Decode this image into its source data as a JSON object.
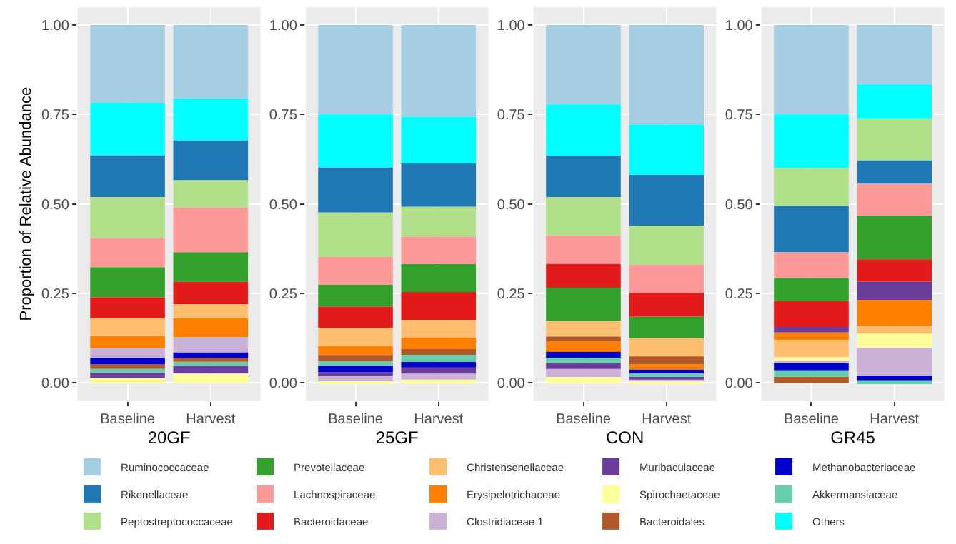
{
  "chart_data": [
    {
      "type": "bar",
      "xlabel": "20GF",
      "ylabel": "Proportion of Relative Abundance",
      "categories": [
        "Baseline",
        "Harvest"
      ],
      "ylim": [
        -0.05,
        1.05
      ],
      "yticks": [
        {
          "value": 0,
          "label": "0.00"
        },
        {
          "value": 0.25,
          "label": "0.25"
        },
        {
          "value": 0.5,
          "label": "0.50"
        },
        {
          "value": 0.75,
          "label": "0.75"
        },
        {
          "value": 1,
          "label": "1.00"
        }
      ],
      "grid": true,
      "legend": "bottom",
      "series": [
        {
          "name": "Ruminococcaceae",
          "color": "#a6cee3",
          "base": [
            0.783,
            0.795
          ],
          "values": [
            0.217,
            0.205
          ]
        },
        {
          "name": "Rikenellaceae",
          "color": "#1f78b4",
          "base": [
            0.519,
            0.566
          ],
          "values": [
            0.117,
            0.112
          ]
        },
        {
          "name": "Peptostreptococcaceae",
          "color": "#b2df8a",
          "base": [
            0.404,
            0.49
          ],
          "values": [
            0.115,
            0.076
          ]
        },
        {
          "name": "Prevotellaceae",
          "color": "#33a02c",
          "base": [
            0.239,
            0.283
          ],
          "values": [
            0.084,
            0.082
          ]
        },
        {
          "name": "Lachnospiraceae",
          "color": "#fb9a99",
          "base": [
            0.323,
            0.365
          ],
          "values": [
            0.081,
            0.125
          ]
        },
        {
          "name": "Bacteroidaceae",
          "color": "#e31a1c",
          "base": [
            0.18,
            0.22
          ],
          "values": [
            0.059,
            0.063
          ]
        },
        {
          "name": "Christensenellaceae",
          "color": "#fdbf6f",
          "base": [
            0.13,
            0.18
          ],
          "values": [
            0.05,
            0.04
          ]
        },
        {
          "name": "Erysipelotrichaceae",
          "color": "#ff7f00",
          "base": [
            0.096,
            0.128
          ],
          "values": [
            0.034,
            0.052
          ]
        },
        {
          "name": "Clostridiaceae 1",
          "color": "#cab2d6",
          "base": [
            0.07,
            0.085
          ],
          "values": [
            0.026,
            0.043
          ]
        },
        {
          "name": "Muribaculaceae",
          "color": "#6a3d9a",
          "base": [
            0.013,
            0.026
          ],
          "values": [
            0.016,
            0.022
          ]
        },
        {
          "name": "Spirochaetaceae",
          "color": "#ffff99",
          "base": [
            0,
            0
          ],
          "values": [
            0.013,
            0.026
          ]
        },
        {
          "name": "Bacteroidales",
          "color": "#b15928",
          "base": [
            0.039,
            0.059
          ],
          "values": [
            0.013,
            0.01
          ]
        },
        {
          "name": "Methanobacteriaceae",
          "color": "#0000cd",
          "base": [
            0.052,
            0.069
          ],
          "values": [
            0.018,
            0.016
          ]
        },
        {
          "name": "Akkermansiaceae",
          "color": "#66cdaa",
          "base": [
            0.029,
            0.048
          ],
          "values": [
            0.01,
            0.011
          ]
        },
        {
          "name": "Others",
          "color": "#00ffff",
          "base": [
            0.636,
            0.678
          ],
          "values": [
            0.147,
            0.117
          ]
        }
      ]
    },
    {
      "type": "bar",
      "xlabel": "25GF",
      "categories": [
        "Baseline",
        "Harvest"
      ],
      "ylim": [
        -0.05,
        1.05
      ],
      "yticks": [
        {
          "value": 0,
          "label": "0.00"
        },
        {
          "value": 0.25,
          "label": "0.25"
        },
        {
          "value": 0.5,
          "label": "0.50"
        },
        {
          "value": 0.75,
          "label": "0.75"
        },
        {
          "value": 1,
          "label": "1.00"
        }
      ],
      "grid": true,
      "series": [
        {
          "name": "Ruminococcaceae",
          "color": "#a6cee3",
          "base": [
            0.75,
            0.743
          ],
          "values": [
            0.25,
            0.257
          ]
        },
        {
          "name": "Rikenellaceae",
          "color": "#1f78b4",
          "base": [
            0.476,
            0.492
          ],
          "values": [
            0.126,
            0.121
          ]
        },
        {
          "name": "Peptostreptococcaceae",
          "color": "#b2df8a",
          "base": [
            0.352,
            0.408
          ],
          "values": [
            0.124,
            0.084
          ]
        },
        {
          "name": "Prevotellaceae",
          "color": "#33a02c",
          "base": [
            0.213,
            0.254
          ],
          "values": [
            0.061,
            0.078
          ]
        },
        {
          "name": "Lachnospiraceae",
          "color": "#fb9a99",
          "base": [
            0.274,
            0.332
          ],
          "values": [
            0.078,
            0.076
          ]
        },
        {
          "name": "Bacteroidaceae",
          "color": "#e31a1c",
          "base": [
            0.153,
            0.176
          ],
          "values": [
            0.06,
            0.078
          ]
        },
        {
          "name": "Christensenellaceae",
          "color": "#fdbf6f",
          "base": [
            0.102,
            0.126
          ],
          "values": [
            0.051,
            0.05
          ]
        },
        {
          "name": "Erysipelotrichaceae",
          "color": "#ff7f00",
          "base": [
            0.078,
            0.094
          ],
          "values": [
            0.024,
            0.032
          ]
        },
        {
          "name": "Clostridiaceae 1",
          "color": "#cab2d6",
          "base": [
            0.003,
            0.009
          ],
          "values": [
            0.017,
            0.017
          ]
        },
        {
          "name": "Muribaculaceae",
          "color": "#6a3d9a",
          "base": [
            0.02,
            0.026
          ],
          "values": [
            0.01,
            0.017
          ]
        },
        {
          "name": "Spirochaetaceae",
          "color": "#ffff99",
          "base": [
            0,
            0
          ],
          "values": [
            0.003,
            0.009
          ]
        },
        {
          "name": "Bacteroidales",
          "color": "#b15928",
          "base": [
            0.061,
            0.078
          ],
          "values": [
            0.017,
            0.016
          ]
        },
        {
          "name": "Methanobacteriaceae",
          "color": "#0000cd",
          "base": [
            0.03,
            0.043
          ],
          "values": [
            0.018,
            0.016
          ]
        },
        {
          "name": "Akkermansiaceae",
          "color": "#66cdaa",
          "base": [
            0.048,
            0.059
          ],
          "values": [
            0.013,
            0.019
          ]
        },
        {
          "name": "Others",
          "color": "#00ffff",
          "base": [
            0.602,
            0.613
          ],
          "values": [
            0.148,
            0.13
          ]
        }
      ]
    },
    {
      "type": "bar",
      "xlabel": "CON",
      "categories": [
        "Baseline",
        "Harvest"
      ],
      "ylim": [
        -0.05,
        1.05
      ],
      "yticks": [
        {
          "value": 0,
          "label": "0.00"
        },
        {
          "value": 0.25,
          "label": "0.25"
        },
        {
          "value": 0.5,
          "label": "0.50"
        },
        {
          "value": 0.75,
          "label": "0.75"
        },
        {
          "value": 1,
          "label": "1.00"
        }
      ],
      "grid": true,
      "series": [
        {
          "name": "Ruminococcaceae",
          "color": "#a6cee3",
          "base": [
            0.778,
            0.722
          ],
          "values": [
            0.222,
            0.278
          ]
        },
        {
          "name": "Rikenellaceae",
          "color": "#1f78b4",
          "base": [
            0.519,
            0.439
          ],
          "values": [
            0.116,
            0.142
          ]
        },
        {
          "name": "Peptostreptococcaceae",
          "color": "#b2df8a",
          "base": [
            0.411,
            0.33
          ],
          "values": [
            0.108,
            0.109
          ]
        },
        {
          "name": "Prevotellaceae",
          "color": "#33a02c",
          "base": [
            0.173,
            0.124
          ],
          "values": [
            0.093,
            0.061
          ]
        },
        {
          "name": "Lachnospiraceae",
          "color": "#fb9a99",
          "base": [
            0.332,
            0.252
          ],
          "values": [
            0.079,
            0.078
          ]
        },
        {
          "name": "Bacteroidaceae",
          "color": "#e31a1c",
          "base": [
            0.266,
            0.185
          ],
          "values": [
            0.066,
            0.067
          ]
        },
        {
          "name": "Christensenellaceae",
          "color": "#fdbf6f",
          "base": [
            0.129,
            0.074
          ],
          "values": [
            0.044,
            0.05
          ]
        },
        {
          "name": "Erysipelotrichaceae",
          "color": "#ff7f00",
          "base": [
            0.087,
            0.037
          ],
          "values": [
            0.029,
            0.015
          ]
        },
        {
          "name": "Clostridiaceae 1",
          "color": "#cab2d6",
          "base": [
            0.016,
            0.003
          ],
          "values": [
            0.023,
            0.006
          ]
        },
        {
          "name": "Muribaculaceae",
          "color": "#6a3d9a",
          "base": [
            0.039,
            0.009
          ],
          "values": [
            0.017,
            0.008
          ]
        },
        {
          "name": "Spirochaetaceae",
          "color": "#ffff99",
          "base": [
            0,
            0
          ],
          "values": [
            0.016,
            0.003
          ]
        },
        {
          "name": "Bacteroidales",
          "color": "#b15928",
          "base": [
            0.116,
            0.052
          ],
          "values": [
            0.013,
            0.022
          ]
        },
        {
          "name": "Methanobacteriaceae",
          "color": "#0000cd",
          "base": [
            0.07,
            0.026
          ],
          "values": [
            0.017,
            0.011
          ]
        },
        {
          "name": "Akkermansiaceae",
          "color": "#66cdaa",
          "base": [
            0.056,
            0.017
          ],
          "values": [
            0.014,
            0.009
          ]
        },
        {
          "name": "Others",
          "color": "#00ffff",
          "base": [
            0.635,
            0.581
          ],
          "values": [
            0.143,
            0.141
          ]
        }
      ]
    },
    {
      "type": "bar",
      "xlabel": "GR45",
      "categories": [
        "Baseline",
        "Harvest"
      ],
      "ylim": [
        -0.05,
        1.05
      ],
      "yticks": [
        {
          "value": 0,
          "label": "0.00"
        },
        {
          "value": 0.25,
          "label": "0.25"
        },
        {
          "value": 0.5,
          "label": "0.50"
        },
        {
          "value": 0.75,
          "label": "0.75"
        },
        {
          "value": 1,
          "label": "1.00"
        }
      ],
      "grid": true,
      "series": [
        {
          "name": "Ruminococcaceae",
          "color": "#a6cee3",
          "base": [
            0.75,
            0.834
          ],
          "values": [
            0.25,
            0.166
          ]
        },
        {
          "name": "Rikenellaceae",
          "color": "#1f78b4",
          "base": [
            0.365,
            0.557
          ],
          "values": [
            0.13,
            0.065
          ]
        },
        {
          "name": "Peptostreptococcaceae",
          "color": "#b2df8a",
          "base": [
            0.495,
            0.622
          ],
          "values": [
            0.105,
            0.117
          ]
        },
        {
          "name": "Prevotellaceae",
          "color": "#33a02c",
          "base": [
            0.229,
            0.345
          ],
          "values": [
            0.064,
            0.122
          ]
        },
        {
          "name": "Lachnospiraceae",
          "color": "#fb9a99",
          "base": [
            0.293,
            0.467
          ],
          "values": [
            0.072,
            0.09
          ]
        },
        {
          "name": "Bacteroidaceae",
          "color": "#e31a1c",
          "base": [
            0.156,
            0.283
          ],
          "values": [
            0.073,
            0.062
          ]
        },
        {
          "name": "Christensenellaceae",
          "color": "#fdbf6f",
          "base": [
            0.072,
            0.137
          ],
          "values": [
            0.048,
            0.022
          ]
        },
        {
          "name": "Erysipelotrichaceae",
          "color": "#ff7f00",
          "base": [
            0.12,
            0.159
          ],
          "values": [
            0.021,
            0.073
          ]
        },
        {
          "name": "Clostridiaceae 1",
          "color": "#cab2d6",
          "base": [
            0.055,
            0.02
          ],
          "values": [
            0.008,
            0.078
          ]
        },
        {
          "name": "Muribaculaceae",
          "color": "#6a3d9a",
          "base": [
            0.141,
            0.232
          ],
          "values": [
            0.015,
            0.051
          ]
        },
        {
          "name": "Spirochaetaceae",
          "color": "#ffff99",
          "base": [
            0.063,
            0.098
          ],
          "values": [
            0.009,
            0.039
          ]
        },
        {
          "name": "Bacteroidales",
          "color": "#b15928",
          "base": [
            0,
            null
          ],
          "values": [
            0.017,
            null
          ]
        },
        {
          "name": "Methanobacteriaceae",
          "color": "#0000cd",
          "base": [
            0.035,
            0.007
          ],
          "values": [
            0.02,
            0.013
          ]
        },
        {
          "name": "Akkermansiaceae",
          "color": "#66cdaa",
          "base": [
            0.017,
            0
          ],
          "values": [
            0.018,
            0.007
          ]
        },
        {
          "name": "Others",
          "color": "#00ffff",
          "base": [
            0.6,
            0.739
          ],
          "values": [
            0.15,
            0.095
          ]
        }
      ]
    }
  ]
}
